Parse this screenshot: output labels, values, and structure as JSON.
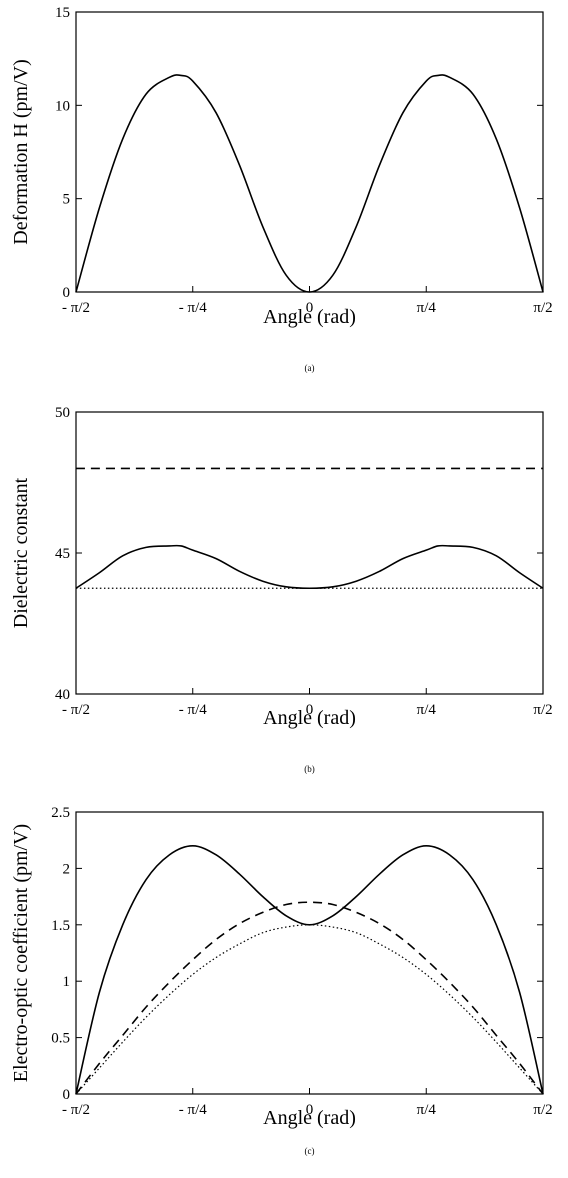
{
  "chart_data": [
    {
      "type": "line",
      "panel_label": "(a)",
      "xlabel": "Angle (rad)",
      "ylabel": "Deformation H (pm/V)",
      "xlim": [
        -1.5708,
        1.5708
      ],
      "ylim": [
        0,
        15
      ],
      "x_ticks": [
        {
          "value": -1.5708,
          "label": "- π/2"
        },
        {
          "value": -0.7854,
          "label": "- π/4"
        },
        {
          "value": 0,
          "label": "0"
        },
        {
          "value": 0.7854,
          "label": "π/4"
        },
        {
          "value": 1.5708,
          "label": "π/2"
        }
      ],
      "y_ticks": [
        {
          "value": 0,
          "label": "0"
        },
        {
          "value": 5,
          "label": "5"
        },
        {
          "value": 10,
          "label": "10"
        },
        {
          "value": 15,
          "label": "15"
        }
      ],
      "series": [
        {
          "style": "solid",
          "x": [
            -1.5708,
            -1.4137,
            -1.2566,
            -1.0996,
            -0.9425,
            -0.8639,
            -0.7854,
            -0.6283,
            -0.4712,
            -0.3142,
            -0.1571,
            0,
            0.1571,
            0.3142,
            0.4712,
            0.6283,
            0.7854,
            0.8639,
            0.9425,
            1.0996,
            1.2566,
            1.4137,
            1.5708
          ],
          "y": [
            0,
            4.5,
            8.2,
            10.6,
            11.5,
            11.6,
            11.3,
            9.6,
            6.8,
            3.5,
            0.9,
            0,
            0.9,
            3.5,
            6.8,
            9.6,
            11.3,
            11.6,
            11.5,
            10.6,
            8.2,
            4.5,
            0
          ]
        }
      ]
    },
    {
      "type": "line",
      "panel_label": "(b)",
      "xlabel": "Angle (rad)",
      "ylabel": "Dielectric constant",
      "xlim": [
        -1.5708,
        1.5708
      ],
      "ylim": [
        40,
        50
      ],
      "x_ticks": [
        {
          "value": -1.5708,
          "label": "- π/2"
        },
        {
          "value": -0.7854,
          "label": "- π/4"
        },
        {
          "value": 0,
          "label": "0"
        },
        {
          "value": 0.7854,
          "label": "π/4"
        },
        {
          "value": 1.5708,
          "label": "π/2"
        }
      ],
      "y_ticks": [
        {
          "value": 40,
          "label": "40"
        },
        {
          "value": 45,
          "label": "45"
        },
        {
          "value": 50,
          "label": "50"
        }
      ],
      "series": [
        {
          "style": "dashed",
          "x": [
            -1.5708,
            1.5708
          ],
          "y": [
            48,
            48
          ]
        },
        {
          "style": "solid",
          "x": [
            -1.5708,
            -1.4137,
            -1.2566,
            -1.0996,
            -0.9425,
            -0.8639,
            -0.7854,
            -0.6283,
            -0.4712,
            -0.3142,
            -0.1571,
            0,
            0.1571,
            0.3142,
            0.4712,
            0.6283,
            0.7854,
            0.8639,
            0.9425,
            1.0996,
            1.2566,
            1.4137,
            1.5708
          ],
          "y": [
            43.75,
            44.3,
            44.9,
            45.2,
            45.25,
            45.25,
            45.1,
            44.8,
            44.35,
            44.0,
            43.8,
            43.75,
            43.8,
            44.0,
            44.35,
            44.8,
            45.1,
            45.25,
            45.25,
            45.2,
            44.9,
            44.3,
            43.75
          ]
        },
        {
          "style": "dotted",
          "x": [
            -1.5708,
            1.5708
          ],
          "y": [
            43.75,
            43.75
          ]
        }
      ]
    },
    {
      "type": "line",
      "panel_label": "(c)",
      "xlabel": "Angle (rad)",
      "ylabel": "Electro-optic coefficient (pm/V)",
      "xlim": [
        -1.5708,
        1.5708
      ],
      "ylim": [
        0,
        2.5
      ],
      "x_ticks": [
        {
          "value": -1.5708,
          "label": "- π/2"
        },
        {
          "value": -0.7854,
          "label": "- π/4"
        },
        {
          "value": 0,
          "label": "0"
        },
        {
          "value": 0.7854,
          "label": "π/4"
        },
        {
          "value": 1.5708,
          "label": "π/2"
        }
      ],
      "y_ticks": [
        {
          "value": 0,
          "label": "0"
        },
        {
          "value": 0.5,
          "label": "0.5"
        },
        {
          "value": 1,
          "label": "1"
        },
        {
          "value": 1.5,
          "label": "1.5"
        },
        {
          "value": 2,
          "label": "2"
        },
        {
          "value": 2.5,
          "label": "2.5"
        }
      ],
      "series": [
        {
          "style": "solid",
          "x": [
            -1.5708,
            -1.4137,
            -1.2566,
            -1.0996,
            -0.9425,
            -0.7854,
            -0.6283,
            -0.4712,
            -0.3142,
            -0.1571,
            0,
            0.1571,
            0.3142,
            0.4712,
            0.6283,
            0.7854,
            0.9425,
            1.0996,
            1.2566,
            1.4137,
            1.5708
          ],
          "y": [
            0,
            0.9,
            1.5,
            1.9,
            2.12,
            2.2,
            2.12,
            1.95,
            1.75,
            1.58,
            1.5,
            1.58,
            1.75,
            1.95,
            2.12,
            2.2,
            2.12,
            1.9,
            1.5,
            0.9,
            0
          ]
        },
        {
          "style": "dashed",
          "x": [
            -1.5708,
            -1.4137,
            -1.2566,
            -1.0996,
            -0.9425,
            -0.7854,
            -0.6283,
            -0.4712,
            -0.3142,
            -0.1571,
            0,
            0.1571,
            0.3142,
            0.4712,
            0.6283,
            0.7854,
            0.9425,
            1.0996,
            1.2566,
            1.4137,
            1.5708
          ],
          "y": [
            0,
            0.27,
            0.52,
            0.77,
            0.99,
            1.19,
            1.37,
            1.51,
            1.61,
            1.68,
            1.7,
            1.68,
            1.61,
            1.51,
            1.37,
            1.19,
            0.99,
            0.77,
            0.52,
            0.27,
            0
          ]
        },
        {
          "style": "dotted",
          "x": [
            -1.5708,
            -1.4137,
            -1.2566,
            -1.0996,
            -0.9425,
            -0.7854,
            -0.6283,
            -0.4712,
            -0.3142,
            -0.1571,
            0,
            0.1571,
            0.3142,
            0.4712,
            0.6283,
            0.7854,
            0.9425,
            1.0996,
            1.2566,
            1.4137,
            1.5708
          ],
          "y": [
            0,
            0.23,
            0.46,
            0.68,
            0.88,
            1.06,
            1.21,
            1.33,
            1.43,
            1.48,
            1.5,
            1.48,
            1.43,
            1.33,
            1.21,
            1.06,
            0.88,
            0.68,
            0.46,
            0.23,
            0
          ]
        }
      ]
    }
  ]
}
